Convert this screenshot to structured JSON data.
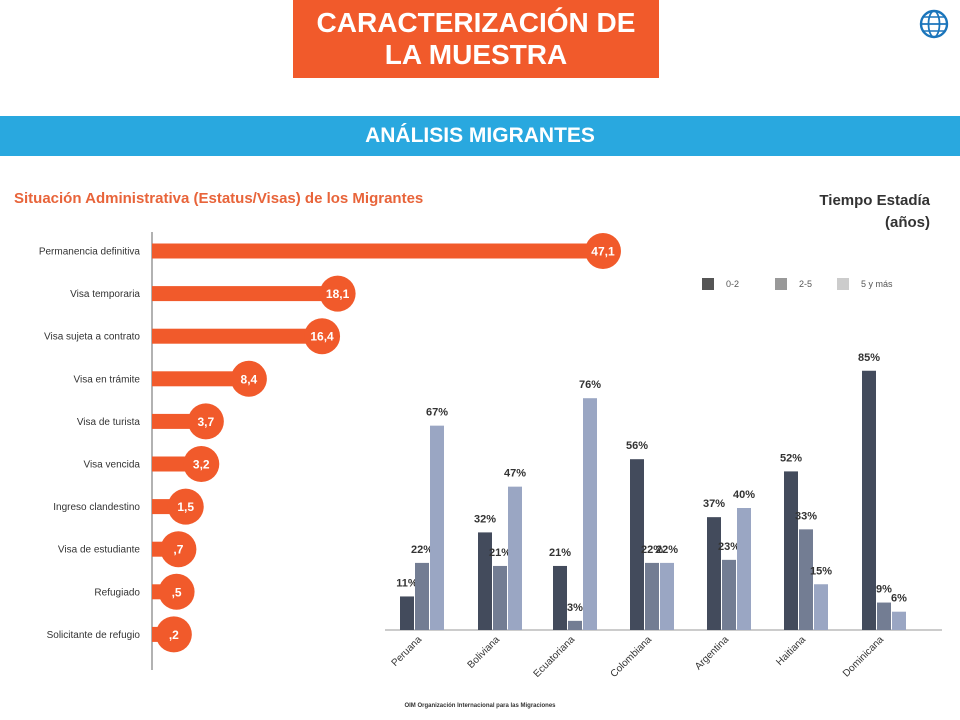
{
  "header": {
    "title": "CARACTERIZACIÓN DE LA MUESTRA",
    "banner": "ANÁLISIS MIGRANTES",
    "logo_icon": "un-globe-logo-icon"
  },
  "colors": {
    "accent": "#f15a2b",
    "banner": "#29a8df",
    "series": [
      "#434b5c",
      "#737d93",
      "#9aa6c3"
    ]
  },
  "footer": {
    "text": "OIM Organización Internacional para las Migraciones"
  },
  "chart_data": [
    {
      "type": "bar",
      "orientation": "horizontal",
      "title": "Situación Administrativa (Estatus/Visas) de los Migrantes",
      "categories": [
        "Permanencia definitiva",
        "Visa temporaria",
        "Visa sujeta a contrato",
        "Visa en trámite",
        "Visa de turista",
        "Visa vencida",
        "Ingreso clandestino",
        "Visa de estudiante",
        "Refugiado",
        "Solicitante de refugio"
      ],
      "values": [
        47.1,
        18.1,
        16.4,
        8.4,
        3.7,
        3.2,
        1.5,
        0.7,
        0.5,
        0.2
      ],
      "labels": [
        "47,1",
        "18,1",
        "16,4",
        "8,4",
        "3,7",
        "3,2",
        "1,5",
        ",7",
        ",5",
        ",2"
      ],
      "color": "#f15a2b"
    },
    {
      "type": "bar",
      "title": "Tiempo Estadía (años)",
      "categories": [
        "Peruana",
        "Boliviana",
        "Ecuatoriana",
        "Colombiana",
        "Argentina",
        "Haitiana",
        "Dominicana"
      ],
      "series": [
        {
          "name": "0-2",
          "values": [
            11,
            32,
            21,
            56,
            37,
            52,
            85
          ],
          "color": "#434b5c"
        },
        {
          "name": "2-5",
          "values": [
            22,
            21,
            3,
            22,
            23,
            33,
            9
          ],
          "color": "#737d93"
        },
        {
          "name": "5 y más",
          "values": [
            67,
            47,
            76,
            22,
            40,
            15,
            6
          ],
          "color": "#9aa6c3"
        }
      ],
      "unit": "%",
      "legend": "top-right",
      "ylim": [
        0,
        85
      ]
    }
  ]
}
